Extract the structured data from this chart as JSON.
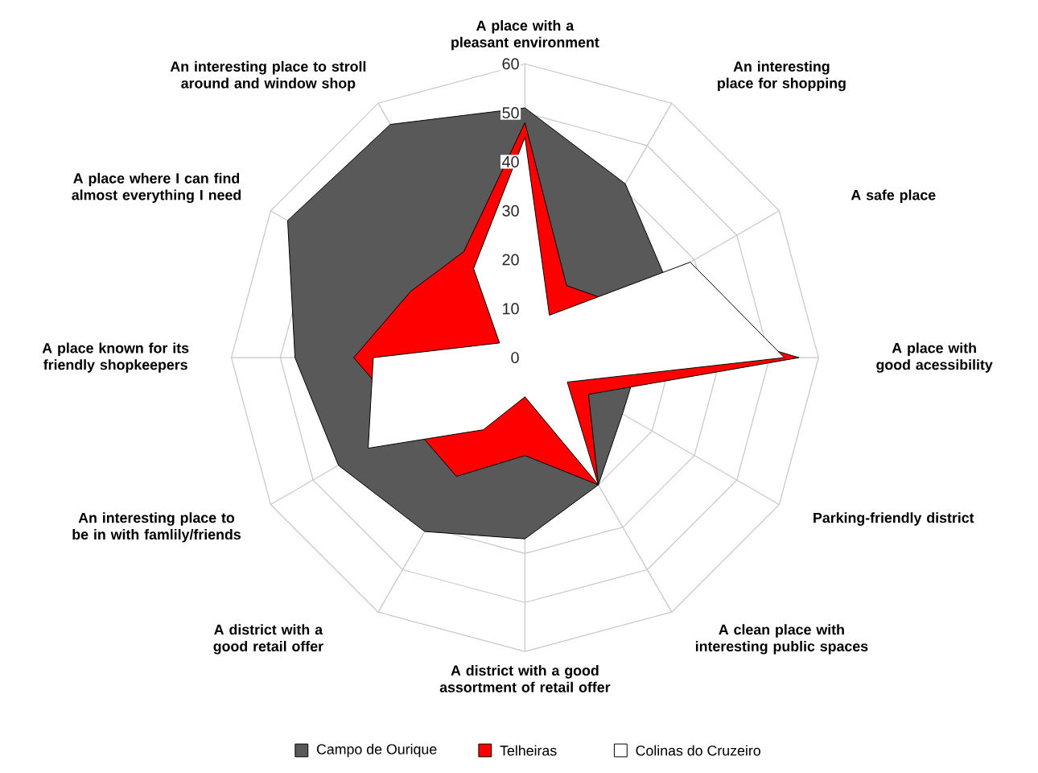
{
  "chart_data": {
    "type": "radar",
    "categories": [
      "A place with a pleasant environment",
      "An interesting place for shopping",
      "A safe place",
      "A place with good acessibility",
      "Parking-friendly district",
      "A clean place with interesting public spaces",
      "A district with a  good assortment of retail offer",
      "A district with a  good retail offer",
      "An interesting place to be in with famlily/friends",
      "A place known for its friendly shopkeepers",
      "A place where I can find almost everything I need",
      "An interesting place to stroll around and window shop"
    ],
    "series": [
      {
        "name": "Campo de Ourique",
        "color": "#595959",
        "values": [
          51,
          41,
          33,
          null,
          23,
          30,
          37,
          41,
          44,
          47,
          56,
          55
        ]
      },
      {
        "name": "Telheiras",
        "color": "#ff0000",
        "values": [
          48,
          17,
          22,
          56,
          15,
          30,
          20,
          28,
          null,
          35,
          27,
          25
        ]
      },
      {
        "name": "Colinas do Cruzeiro",
        "color": "#ffffff",
        "values": [
          45,
          10,
          39,
          53,
          10,
          30,
          8,
          17,
          37,
          31,
          6,
          21
        ]
      }
    ],
    "ylim": [
      0,
      60
    ],
    "yticks": [
      0,
      10,
      20,
      30,
      40,
      50,
      60
    ],
    "grid": true,
    "legend": "bottom"
  }
}
